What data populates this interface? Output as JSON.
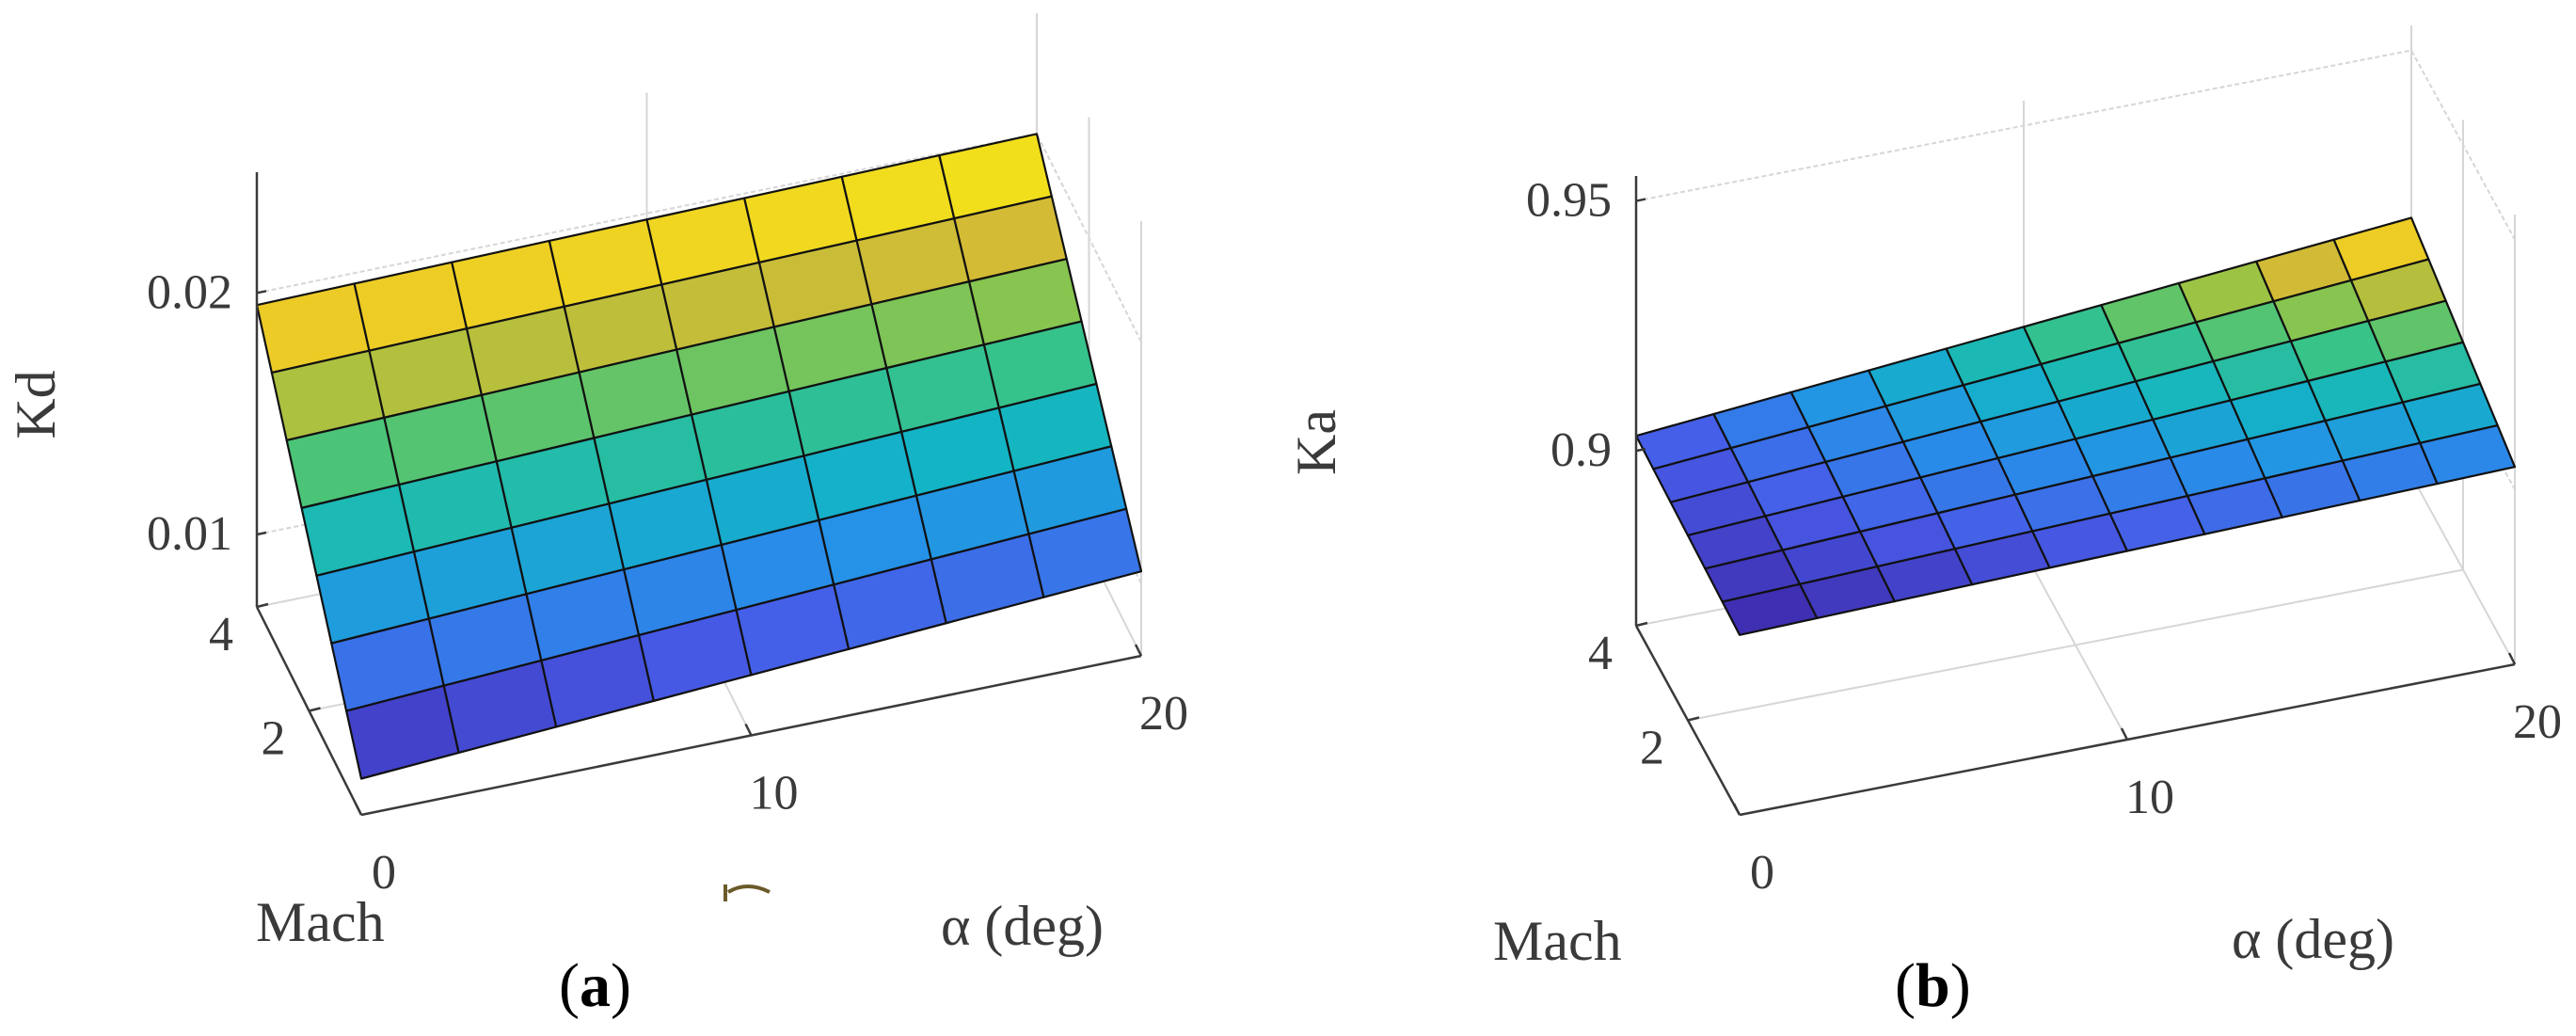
{
  "chart_data": [
    {
      "type": "surface",
      "panel_label": "a",
      "zlabel": "Kd",
      "xlabel": "α (deg)",
      "ylabel": "Mach",
      "x_ticks": [
        "0",
        "10",
        "20"
      ],
      "y_ticks": [
        "2",
        "4"
      ],
      "z_ticks": [
        "0.01",
        "0.02"
      ],
      "xlim": [
        0,
        20
      ],
      "ylim": [
        0,
        4
      ],
      "zlim": [
        0.007,
        0.025
      ],
      "z_tick_values": [
        0.01,
        0.02
      ],
      "x_tick_values": [
        0,
        10,
        20
      ],
      "y_tick_values": [
        2,
        4
      ],
      "grid": true,
      "colormap": "parula",
      "surface_corners": {
        "alpha_max_mach_max": 0.02,
        "alpha_min_mach_max": 0.0195,
        "alpha_max_mach_min": 0.0105,
        "alpha_min_mach_min": 0.0085
      },
      "grid_divisions": [
        8,
        7
      ]
    },
    {
      "type": "surface",
      "panel_label": "b",
      "zlabel": "Ka",
      "xlabel": "α (deg)",
      "ylabel": "Mach",
      "x_ticks": [
        "0",
        "10",
        "20"
      ],
      "y_ticks": [
        "2",
        "4"
      ],
      "z_ticks": [
        "0.9",
        "0.95"
      ],
      "xlim": [
        0,
        20
      ],
      "ylim": [
        0,
        4
      ],
      "zlim": [
        0.865,
        0.955
      ],
      "z_tick_values": [
        0.9,
        0.95
      ],
      "x_tick_values": [
        0,
        10,
        20
      ],
      "y_tick_values": [
        2,
        4
      ],
      "grid": true,
      "colormap": "parula",
      "surface_corners": {
        "alpha_max_mach_max": 0.9165,
        "alpha_min_mach_max": 0.903,
        "alpha_max_mach_min": 0.9045,
        "alpha_min_mach_min": 0.901
      },
      "grid_divisions": [
        10,
        6
      ]
    }
  ],
  "captions": {
    "a": "a",
    "b": "b"
  },
  "colors": {
    "axis": "#3a3a3a",
    "grid": "#d6d6d6",
    "mesh": "#111111"
  }
}
